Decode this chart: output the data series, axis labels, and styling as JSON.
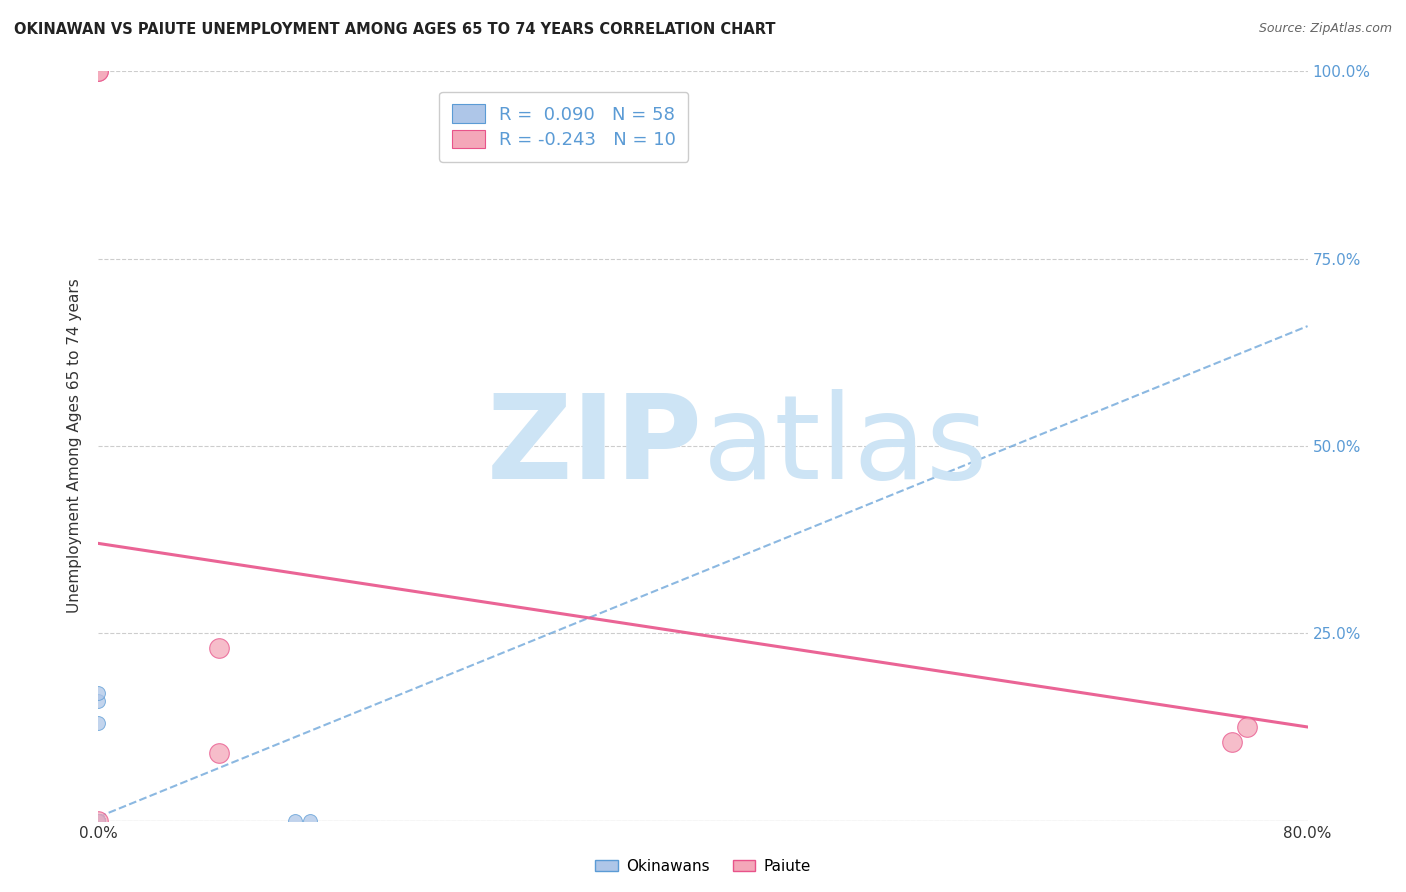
{
  "title": "OKINAWAN VS PAIUTE UNEMPLOYMENT AMONG AGES 65 TO 74 YEARS CORRELATION CHART",
  "source": "Source: ZipAtlas.com",
  "ylabel": "Unemployment Among Ages 65 to 74 years",
  "xlabel": "",
  "xlim": [
    0.0,
    0.8
  ],
  "ylim": [
    0.0,
    1.0
  ],
  "xticks": [
    0.0,
    0.1,
    0.2,
    0.3,
    0.4,
    0.5,
    0.6,
    0.7,
    0.8
  ],
  "xticklabels": [
    "0.0%",
    "",
    "",
    "",
    "",
    "",
    "",
    "",
    "80.0%"
  ],
  "ytick_positions": [
    0.0,
    0.25,
    0.5,
    0.75,
    1.0
  ],
  "ytick_labels_right": [
    "",
    "25.0%",
    "50.0%",
    "75.0%",
    "100.0%"
  ],
  "right_tick_color": "#5b9bd5",
  "grid_color": "#c8c8c8",
  "background_color": "#ffffff",
  "okinawan_color": "#aec6e8",
  "okinawan_edge_color": "#5b9bd5",
  "paiute_color": "#f4a7b9",
  "paiute_edge_color": "#e8538a",
  "okinawan_R": 0.09,
  "okinawan_N": 58,
  "paiute_R": -0.243,
  "paiute_N": 10,
  "legend_R_color": "#5b9bd5",
  "okinawan_scatter_x": [
    0.0,
    0.0,
    0.0,
    0.0,
    0.0,
    0.0,
    0.0,
    0.0,
    0.0,
    0.0,
    0.0,
    0.0,
    0.0,
    0.0,
    0.0,
    0.0,
    0.0,
    0.0,
    0.0,
    0.0,
    0.0,
    0.0,
    0.0,
    0.0,
    0.0,
    0.0,
    0.0,
    0.0,
    0.0,
    0.0,
    0.0,
    0.0,
    0.0,
    0.0,
    0.0,
    0.0,
    0.0,
    0.0,
    0.0,
    0.0,
    0.0,
    0.0,
    0.0,
    0.0,
    0.0,
    0.0,
    0.0,
    0.0,
    0.0,
    0.0,
    0.0,
    0.13,
    0.14
  ],
  "okinawan_scatter_y": [
    0.0,
    0.0,
    0.0,
    0.0,
    0.0,
    0.0,
    0.0,
    0.0,
    0.0,
    0.0,
    0.0,
    0.0,
    0.0,
    0.0,
    0.0,
    0.0,
    0.0,
    0.0,
    0.0,
    0.0,
    0.0,
    0.0,
    0.0,
    0.0,
    0.0,
    0.0,
    0.0,
    0.0,
    0.0,
    0.0,
    0.0,
    0.0,
    0.0,
    0.0,
    0.0,
    0.0,
    0.0,
    0.0,
    0.0,
    0.0,
    0.0,
    0.0,
    0.0,
    0.0,
    0.0,
    0.0,
    0.0,
    0.0,
    0.13,
    0.16,
    0.17,
    0.0,
    0.0
  ],
  "paiute_scatter_x": [
    0.0,
    0.0,
    0.0,
    0.08,
    0.08,
    0.75,
    0.76
  ],
  "paiute_scatter_y": [
    1.0,
    1.0,
    0.0,
    0.23,
    0.09,
    0.105,
    0.125
  ],
  "okinawan_trend_x": [
    0.0,
    0.8
  ],
  "okinawan_trend_y_start": 0.005,
  "okinawan_trend_y_end": 0.66,
  "paiute_trend_x": [
    0.0,
    0.8
  ],
  "paiute_trend_y_start": 0.37,
  "paiute_trend_y_end": 0.125,
  "watermark_zip": "ZIP",
  "watermark_atlas": "atlas",
  "watermark_color": "#cde4f5",
  "watermark_fontsize": 85
}
